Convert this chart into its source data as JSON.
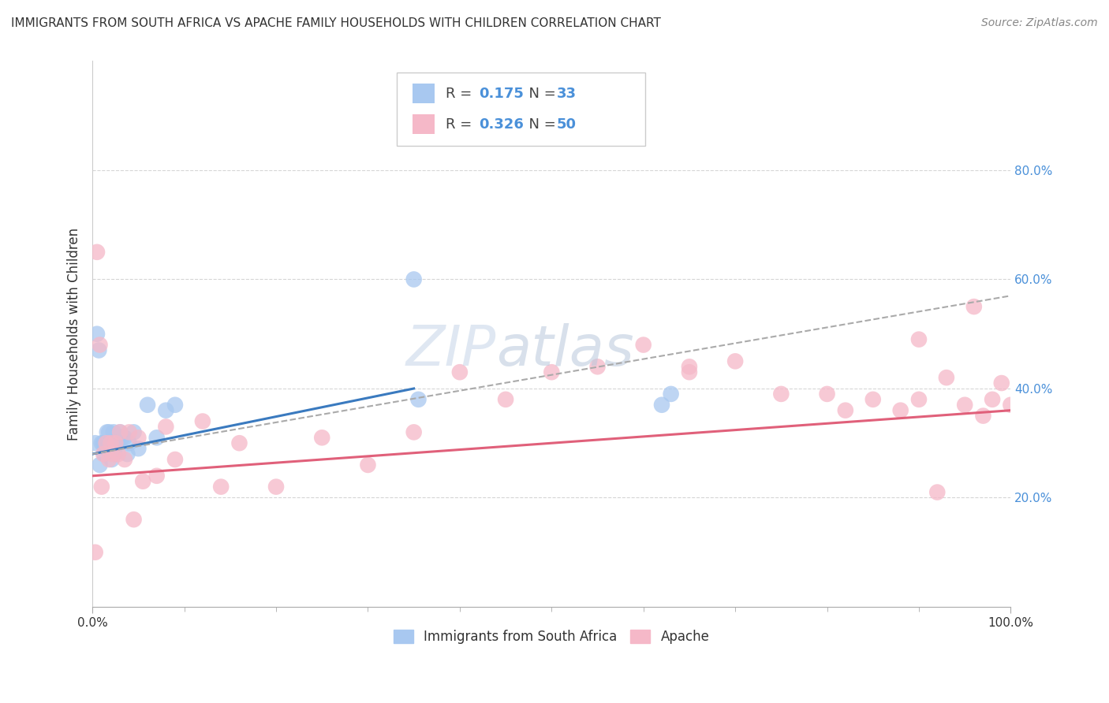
{
  "title": "IMMIGRANTS FROM SOUTH AFRICA VS APACHE FAMILY HOUSEHOLDS WITH CHILDREN CORRELATION CHART",
  "source": "Source: ZipAtlas.com",
  "ylabel": "Family Households with Children",
  "r1": "0.175",
  "n1": "33",
  "r2": "0.326",
  "n2": "50",
  "legend_label1": "Immigrants from South Africa",
  "legend_label2": "Apache",
  "color_blue": "#a8c8f0",
  "color_pink": "#f5b8c8",
  "color_blue_line": "#3a7abf",
  "color_pink_line": "#e0607a",
  "color_dashed": "#aaaaaa",
  "watermark_zip": "ZIP",
  "watermark_atlas": "atlas",
  "xlim": [
    0,
    100
  ],
  "ylim": [
    0,
    100
  ],
  "ytick_positions": [
    20,
    40,
    60,
    80
  ],
  "ytick_labels": [
    "20.0%",
    "40.0%",
    "60.0%",
    "80.0%"
  ],
  "xtick_positions": [
    0,
    100
  ],
  "xtick_labels": [
    "0.0%",
    "100.0%"
  ],
  "blue_points_x": [
    0.3,
    0.5,
    0.7,
    0.8,
    1.0,
    1.2,
    1.3,
    1.5,
    1.6,
    1.8,
    2.0,
    2.1,
    2.2,
    2.3,
    2.4,
    2.5,
    2.6,
    2.8,
    3.0,
    3.2,
    3.5,
    3.8,
    4.0,
    4.5,
    5.0,
    6.0,
    7.0,
    8.0,
    9.0,
    35.0,
    35.5,
    62.0,
    63.0
  ],
  "blue_points_y": [
    30.0,
    50.0,
    47.0,
    26.0,
    30.0,
    30.0,
    28.0,
    29.0,
    32.0,
    32.0,
    30.0,
    27.0,
    30.0,
    32.0,
    28.0,
    30.0,
    30.0,
    30.0,
    32.0,
    31.0,
    31.0,
    28.0,
    30.0,
    32.0,
    29.0,
    37.0,
    31.0,
    36.0,
    37.0,
    60.0,
    38.0,
    37.0,
    39.0
  ],
  "pink_points_x": [
    0.3,
    0.5,
    0.8,
    1.0,
    1.2,
    1.5,
    1.8,
    2.0,
    2.2,
    2.5,
    2.8,
    3.0,
    3.5,
    4.0,
    4.5,
    5.0,
    5.5,
    7.0,
    8.0,
    9.0,
    12.0,
    14.0,
    16.0,
    20.0,
    25.0,
    30.0,
    35.0,
    40.0,
    45.0,
    50.0,
    55.0,
    60.0,
    65.0,
    70.0,
    75.0,
    80.0,
    82.0,
    85.0,
    88.0,
    90.0,
    92.0,
    93.0,
    95.0,
    96.0,
    97.0,
    98.0,
    99.0,
    100.0,
    65.0,
    90.0
  ],
  "pink_points_y": [
    10.0,
    65.0,
    48.0,
    22.0,
    28.0,
    30.0,
    27.0,
    30.0,
    28.0,
    30.0,
    28.0,
    32.0,
    27.0,
    32.0,
    16.0,
    31.0,
    23.0,
    24.0,
    33.0,
    27.0,
    34.0,
    22.0,
    30.0,
    22.0,
    31.0,
    26.0,
    32.0,
    43.0,
    38.0,
    43.0,
    44.0,
    48.0,
    43.0,
    45.0,
    39.0,
    39.0,
    36.0,
    38.0,
    36.0,
    38.0,
    21.0,
    42.0,
    37.0,
    55.0,
    35.0,
    38.0,
    41.0,
    37.0,
    44.0,
    49.0
  ],
  "blue_line_x": [
    0,
    35
  ],
  "blue_line_y": [
    28.0,
    40.0
  ],
  "pink_line_x": [
    0,
    100
  ],
  "pink_line_y": [
    24.0,
    36.0
  ],
  "dashed_line_x": [
    0,
    100
  ],
  "dashed_line_y": [
    28.0,
    57.0
  ],
  "title_fontsize": 11,
  "source_fontsize": 10,
  "tick_fontsize": 11,
  "legend_fontsize": 13
}
